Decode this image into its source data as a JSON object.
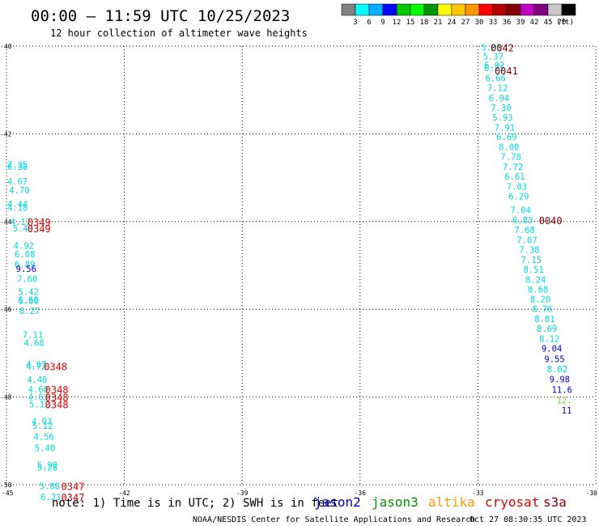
{
  "header": {
    "title": "00:00 – 11:59 UTC 10/25/2023",
    "subtitle": "12 hour collection of altimeter wave heights"
  },
  "colorbar": {
    "swatches": [
      "#808080",
      "#00ffff",
      "#00b0ff",
      "#0000ff",
      "#00c800",
      "#00ff00",
      "#009600",
      "#ffff00",
      "#ffc800",
      "#ff9600",
      "#ff0000",
      "#b40000",
      "#800000",
      "#c000c0",
      "#800080",
      "#c8c8c8",
      "#000000"
    ],
    "ticks": [
      "3",
      "6",
      "9",
      "12",
      "15",
      "18",
      "21",
      "24",
      "27",
      "30",
      "33",
      "36",
      "39",
      "42",
      "45",
      "70"
    ],
    "unit": "(ft)"
  },
  "footer": {
    "note": "note: 1) Time is in UTC; 2) SWH is in feet",
    "credit": "NOAA/NESDIS Center for Satellite Applications and Research",
    "timestamp": "Oct 27 08:30:35 UTC 2023",
    "legend": [
      {
        "name": "jason2",
        "color": "#0000cc"
      },
      {
        "name": "jason3",
        "color": "#009900"
      },
      {
        "name": "altika",
        "color": "#ff9900"
      },
      {
        "name": "cryosat",
        "color": "#dd0000"
      },
      {
        "name": "s3a",
        "color": "#880000"
      }
    ]
  },
  "chart_data": {
    "type": "scatter",
    "xlim": [
      -45,
      -30
    ],
    "ylim": [
      -50,
      -40
    ],
    "xticks": [
      "-45",
      "-42",
      "-39",
      "-36",
      "-33",
      "-30"
    ],
    "yticks": [
      "-40",
      "-42",
      "-44",
      "-46",
      "-48",
      "-50"
    ],
    "grid": true,
    "points": [
      {
        "x": -44.72,
        "y": -42.7,
        "v": "7.35",
        "c": "#00d8e0"
      },
      {
        "x": -44.72,
        "y": -42.75,
        "v": "6.38",
        "c": "#00d8e0"
      },
      {
        "x": -44.72,
        "y": -43.08,
        "v": "4.67",
        "c": "#00d8e0"
      },
      {
        "x": -44.67,
        "y": -43.28,
        "v": "4.70",
        "c": "#00d8e0"
      },
      {
        "x": -44.72,
        "y": -43.6,
        "v": "4.44",
        "c": "#00d8e0"
      },
      {
        "x": -44.72,
        "y": -43.68,
        "v": "4.18",
        "c": "#00d8e0"
      },
      {
        "x": -44.64,
        "y": -44.0,
        "v": "4.17",
        "c": "#00d8e0"
      },
      {
        "x": -44.58,
        "y": -44.15,
        "v": "5.47",
        "c": "#00d8e0"
      },
      {
        "x": -44.56,
        "y": -44.55,
        "v": "4.92",
        "c": "#00d8e0"
      },
      {
        "x": -44.53,
        "y": -44.74,
        "v": "6.08",
        "c": "#00d8e0"
      },
      {
        "x": -44.53,
        "y": -44.97,
        "v": "6.89",
        "c": "#00d8e0"
      },
      {
        "x": -44.5,
        "y": -45.07,
        "v": "9.56",
        "c": "#0000cc"
      },
      {
        "x": -44.47,
        "y": -45.3,
        "v": "7.60",
        "c": "#00d8e0"
      },
      {
        "x": -44.44,
        "y": -45.6,
        "v": "5.42",
        "c": "#00d8e0"
      },
      {
        "x": -44.44,
        "y": -45.78,
        "v": "5.60",
        "c": "#00d8e0"
      },
      {
        "x": -44.44,
        "y": -45.8,
        "v": "6.60",
        "c": "#00d8e0"
      },
      {
        "x": -44.41,
        "y": -46.03,
        "v": "8.27",
        "c": "#00d8e0"
      },
      {
        "x": -44.33,
        "y": -46.58,
        "v": "7.11",
        "c": "#00d8e0"
      },
      {
        "x": -44.3,
        "y": -46.76,
        "v": "4.68",
        "c": "#00d8e0"
      },
      {
        "x": -44.24,
        "y": -47.25,
        "v": "4.67",
        "c": "#00d8e0"
      },
      {
        "x": -44.24,
        "y": -47.3,
        "v": "4.72",
        "c": "#00d8e0"
      },
      {
        "x": -44.22,
        "y": -47.6,
        "v": "4.40",
        "c": "#00d8e0"
      },
      {
        "x": -44.19,
        "y": -47.82,
        "v": "4.60",
        "c": "#00d8e0"
      },
      {
        "x": -44.19,
        "y": -48.0,
        "v": "4.63",
        "c": "#00d8e0"
      },
      {
        "x": -44.16,
        "y": -48.16,
        "v": "5.12",
        "c": "#00d8e0"
      },
      {
        "x": -44.1,
        "y": -48.55,
        "v": "4.93",
        "c": "#00d8e0"
      },
      {
        "x": -44.08,
        "y": -48.65,
        "v": "5.12",
        "c": "#00d8e0"
      },
      {
        "x": -44.05,
        "y": -48.9,
        "v": "4.56",
        "c": "#00d8e0"
      },
      {
        "x": -44.02,
        "y": -49.16,
        "v": "5.40",
        "c": "#00d8e0"
      },
      {
        "x": -43.96,
        "y": -49.55,
        "v": "5.90",
        "c": "#00d8e0"
      },
      {
        "x": -43.96,
        "y": -49.6,
        "v": "5.28",
        "c": "#00d8e0"
      },
      {
        "x": -43.9,
        "y": -50.03,
        "v": "5.88",
        "c": "#00d8e0"
      },
      {
        "x": -43.87,
        "y": -50.28,
        "v": "6.23",
        "c": "#00d8e0"
      },
      {
        "x": -32.66,
        "y": -40.03,
        "v": "5.65",
        "c": "#00d8e0"
      },
      {
        "x": -32.61,
        "y": -40.23,
        "v": "5.37",
        "c": "#00d8e0"
      },
      {
        "x": -32.58,
        "y": -40.43,
        "v": "6.02",
        "c": "#00d8e0"
      },
      {
        "x": -32.58,
        "y": -40.5,
        "v": "6.71",
        "c": "#00d8e0"
      },
      {
        "x": -32.55,
        "y": -40.73,
        "v": "6.66",
        "c": "#00d8e0"
      },
      {
        "x": -32.5,
        "y": -40.95,
        "v": "7.12",
        "c": "#00d8e0"
      },
      {
        "x": -32.46,
        "y": -41.18,
        "v": "6.94",
        "c": "#00d8e0"
      },
      {
        "x": -32.41,
        "y": -41.4,
        "v": "7.30",
        "c": "#00d8e0"
      },
      {
        "x": -32.37,
        "y": -41.62,
        "v": "5.93",
        "c": "#00d8e0"
      },
      {
        "x": -32.32,
        "y": -41.85,
        "v": "7.91",
        "c": "#00d8e0"
      },
      {
        "x": -32.27,
        "y": -42.07,
        "v": "6.69",
        "c": "#00d8e0"
      },
      {
        "x": -32.21,
        "y": -42.3,
        "v": "8.00",
        "c": "#00d8e0"
      },
      {
        "x": -32.16,
        "y": -42.52,
        "v": "7.78",
        "c": "#00d8e0"
      },
      {
        "x": -32.11,
        "y": -42.75,
        "v": "7.72",
        "c": "#00d8e0"
      },
      {
        "x": -32.06,
        "y": -42.97,
        "v": "6.61",
        "c": "#00d8e0"
      },
      {
        "x": -32.01,
        "y": -43.2,
        "v": "7.03",
        "c": "#00d8e0"
      },
      {
        "x": -31.96,
        "y": -43.42,
        "v": "6.29",
        "c": "#00d8e0"
      },
      {
        "x": -31.91,
        "y": -43.74,
        "v": "7.04",
        "c": "#00d8e0"
      },
      {
        "x": -31.86,
        "y": -43.97,
        "v": "6.83",
        "c": "#00d8e0"
      },
      {
        "x": -31.81,
        "y": -44.19,
        "v": "7.68",
        "c": "#00d8e0"
      },
      {
        "x": -31.75,
        "y": -44.42,
        "v": "7.07",
        "c": "#00d8e0"
      },
      {
        "x": -31.69,
        "y": -44.64,
        "v": "7.38",
        "c": "#00d8e0"
      },
      {
        "x": -31.64,
        "y": -44.87,
        "v": "7.15",
        "c": "#00d8e0"
      },
      {
        "x": -31.58,
        "y": -45.09,
        "v": "8.51",
        "c": "#00d8e0"
      },
      {
        "x": -31.53,
        "y": -45.32,
        "v": "8.24",
        "c": "#00d8e0"
      },
      {
        "x": -31.47,
        "y": -45.54,
        "v": "8.68",
        "c": "#00d8e0"
      },
      {
        "x": -31.41,
        "y": -45.77,
        "v": "8.20",
        "c": "#00d8e0"
      },
      {
        "x": -31.36,
        "y": -45.99,
        "v": "8.76",
        "c": "#00d8e0"
      },
      {
        "x": -31.3,
        "y": -46.22,
        "v": "8.81",
        "c": "#00d8e0"
      },
      {
        "x": -31.24,
        "y": -46.44,
        "v": "8.69",
        "c": "#00d8e0"
      },
      {
        "x": -31.18,
        "y": -46.67,
        "v": "8.12",
        "c": "#00d8e0"
      },
      {
        "x": -31.12,
        "y": -46.89,
        "v": "9.04",
        "c": "#0000cc"
      },
      {
        "x": -31.05,
        "y": -47.13,
        "v": "9.55",
        "c": "#0000cc"
      },
      {
        "x": -30.98,
        "y": -47.36,
        "v": "8.02",
        "c": "#00d8e0"
      },
      {
        "x": -30.92,
        "y": -47.59,
        "v": "9.98",
        "c": "#0000cc"
      },
      {
        "x": -30.86,
        "y": -47.83,
        "v": "11.6",
        "c": "#0000cc"
      },
      {
        "x": -30.8,
        "y": -48.07,
        "v": "12.",
        "c": "#66dd33"
      },
      {
        "x": -30.74,
        "y": -48.3,
        "v": "11",
        "c": "#0000cc"
      }
    ],
    "passes": [
      {
        "x": -32.38,
        "y": -40.03,
        "t": "0042",
        "c": "#880000"
      },
      {
        "x": -32.28,
        "y": -40.55,
        "t": "0041",
        "c": "#880000"
      },
      {
        "x": -31.15,
        "y": -43.97,
        "t": "0040",
        "c": "#880000"
      },
      {
        "x": -44.17,
        "y": -44.0,
        "t": "0349",
        "c": "#dd0000"
      },
      {
        "x": -44.17,
        "y": -44.15,
        "t": "0349",
        "c": "#dd0000"
      },
      {
        "x": -43.75,
        "y": -47.3,
        "t": "0348",
        "c": "#dd0000"
      },
      {
        "x": -43.72,
        "y": -47.82,
        "t": "0348",
        "c": "#dd0000"
      },
      {
        "x": -43.72,
        "y": -48.0,
        "t": "0348",
        "c": "#dd0000"
      },
      {
        "x": -43.72,
        "y": -48.16,
        "t": "0348",
        "c": "#dd0000"
      },
      {
        "x": -43.31,
        "y": -50.03,
        "t": "0347",
        "c": "#dd0000"
      },
      {
        "x": -43.31,
        "y": -50.28,
        "t": "0347",
        "c": "#dd0000"
      }
    ]
  }
}
